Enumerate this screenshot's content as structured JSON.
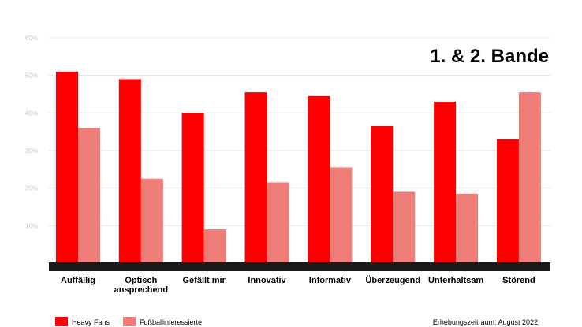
{
  "chart_data": {
    "type": "bar",
    "title": "1. & 2. Bande",
    "categories": [
      [
        "Auffällig"
      ],
      [
        "Optisch",
        "ansprechend"
      ],
      [
        "Gefällt mir"
      ],
      [
        "Innovativ"
      ],
      [
        "Informativ"
      ],
      [
        "Überzeugend"
      ],
      [
        "Unterhaltsam"
      ],
      [
        "Störend"
      ]
    ],
    "series": [
      {
        "name": "Heavy Fans",
        "color": "#ff0000",
        "values": [
          51,
          49,
          40,
          45.5,
          44.5,
          36.5,
          43,
          33
        ]
      },
      {
        "name": "Fußballinteressierte",
        "color": "#ee7d78",
        "values": [
          36,
          22.5,
          9,
          21.5,
          25.5,
          19,
          18.5,
          45.5
        ]
      }
    ],
    "yticks": [
      "10%",
      "20%",
      "30%",
      "40%",
      "50%",
      "60%"
    ],
    "ylim": [
      0,
      60
    ],
    "grid": true,
    "legend_position": "bottom-left"
  },
  "footer": {
    "note": "Erhebungszeitraum: August 2022"
  }
}
